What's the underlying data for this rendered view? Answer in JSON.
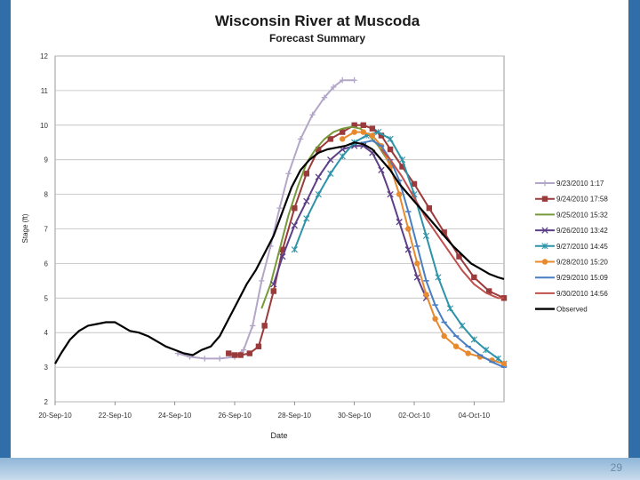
{
  "slide": {
    "page_number": "29"
  },
  "colors": {
    "frame": "#2f6ea8",
    "bottom_band": "#a9c6e0",
    "series": [
      "#b3a6c9",
      "#9b3a3a",
      "#77993a",
      "#5c3f86",
      "#2d93a8",
      "#e8892e",
      "#4a7ec2",
      "#c0504d",
      "#000000"
    ]
  },
  "chart_data": {
    "type": "line",
    "title": "Wisconsin River at Muscoda",
    "subtitle": "Forecast Summary",
    "xlabel": "Date",
    "ylabel": "Stage (ft)",
    "ylim": [
      2,
      12
    ],
    "yticks": [
      "2",
      "3",
      "4",
      "5",
      "6",
      "7",
      "8",
      "9",
      "10",
      "11",
      "12"
    ],
    "xlim": [
      0,
      15
    ],
    "xticks": [
      "20-Sep-10",
      "22-Sep-10",
      "24-Sep-10",
      "26-Sep-10",
      "28-Sep-10",
      "30-Sep-10",
      "02-Oct-10",
      "04-Oct-10"
    ],
    "xtick_positions": [
      0,
      2,
      4,
      6,
      8,
      10,
      12,
      14
    ],
    "legend_position": "right",
    "series": [
      {
        "name": "9/23/2010 1:17",
        "marker": "plus",
        "x": [
          4.1,
          4.5,
          5.0,
          5.5,
          6.0,
          6.3,
          6.6,
          6.9,
          7.2,
          7.5,
          7.8,
          8.2,
          8.6,
          9.0,
          9.3,
          9.6,
          10.0
        ],
        "y": [
          3.4,
          3.3,
          3.25,
          3.25,
          3.3,
          3.5,
          4.2,
          5.5,
          6.5,
          7.6,
          8.6,
          9.6,
          10.3,
          10.8,
          11.1,
          11.3,
          11.3
        ]
      },
      {
        "name": "9/24/2010 17:58",
        "marker": "square",
        "x": [
          5.8,
          6.0,
          6.2,
          6.5,
          6.8,
          7.0,
          7.3,
          7.6,
          8.0,
          8.4,
          8.8,
          9.2,
          9.6,
          10.0,
          10.3,
          10.6,
          10.9,
          11.2,
          11.6,
          12.0,
          12.5,
          13.0,
          13.5,
          14.0,
          14.5,
          15.0
        ],
        "y": [
          3.4,
          3.35,
          3.35,
          3.4,
          3.6,
          4.2,
          5.2,
          6.4,
          7.6,
          8.6,
          9.3,
          9.6,
          9.8,
          10.0,
          10.0,
          9.9,
          9.7,
          9.3,
          8.8,
          8.3,
          7.6,
          6.9,
          6.2,
          5.6,
          5.2,
          5.0
        ]
      },
      {
        "name": "9/25/2010 15:32",
        "marker": "none",
        "x": [
          6.9,
          7.2,
          7.5,
          7.8,
          8.1,
          8.4,
          8.7,
          9.0,
          9.3,
          9.6,
          9.9,
          10.2,
          10.5,
          10.8,
          11.1,
          11.3
        ],
        "y": [
          4.7,
          5.4,
          6.4,
          7.4,
          8.2,
          8.9,
          9.3,
          9.6,
          9.8,
          9.9,
          9.95,
          9.9,
          9.7,
          9.4,
          9.0,
          8.8
        ]
      },
      {
        "name": "9/26/2010 13:42",
        "marker": "x",
        "x": [
          7.3,
          7.6,
          8.0,
          8.4,
          8.8,
          9.2,
          9.6,
          10.0,
          10.3,
          10.6,
          10.9,
          11.2,
          11.5,
          11.8,
          12.1,
          12.4
        ],
        "y": [
          5.4,
          6.2,
          7.1,
          7.8,
          8.5,
          9.0,
          9.3,
          9.4,
          9.4,
          9.2,
          8.7,
          8.0,
          7.2,
          6.4,
          5.6,
          5.0
        ]
      },
      {
        "name": "9/27/2010 14:45",
        "marker": "asterisk",
        "x": [
          8.0,
          8.4,
          8.8,
          9.2,
          9.6,
          10.0,
          10.4,
          10.8,
          11.2,
          11.6,
          12.0,
          12.4,
          12.8,
          13.2,
          13.6,
          14.0,
          14.4,
          14.8,
          15.0
        ],
        "y": [
          6.4,
          7.3,
          8.0,
          8.6,
          9.1,
          9.5,
          9.7,
          9.8,
          9.6,
          9.0,
          8.0,
          6.8,
          5.6,
          4.7,
          4.2,
          3.8,
          3.5,
          3.25,
          3.1
        ]
      },
      {
        "name": "9/28/2010 15:20",
        "marker": "circle",
        "x": [
          9.6,
          10.0,
          10.3,
          10.6,
          10.9,
          11.2,
          11.5,
          11.8,
          12.1,
          12.4,
          12.7,
          13.0,
          13.4,
          13.8,
          14.2,
          14.6,
          15.0
        ],
        "y": [
          9.6,
          9.8,
          9.8,
          9.7,
          9.4,
          8.8,
          8.0,
          7.0,
          6.0,
          5.1,
          4.4,
          3.9,
          3.6,
          3.4,
          3.3,
          3.2,
          3.1
        ]
      },
      {
        "name": "9/29/2010 15:09",
        "marker": "dash",
        "x": [
          10.3,
          10.6,
          10.9,
          11.2,
          11.5,
          11.8,
          12.1,
          12.4,
          12.7,
          13.0,
          13.4,
          13.8,
          14.2,
          14.6,
          15.0
        ],
        "y": [
          9.5,
          9.55,
          9.4,
          9.0,
          8.4,
          7.5,
          6.5,
          5.5,
          4.8,
          4.3,
          3.9,
          3.6,
          3.35,
          3.15,
          3.0
        ]
      },
      {
        "name": "9/30/2010 14:56",
        "marker": "none",
        "x": [
          10.9,
          11.2,
          11.6,
          12.0,
          12.4,
          12.8,
          13.2,
          13.6,
          14.0,
          14.4,
          14.8,
          15.0
        ],
        "y": [
          9.3,
          9.0,
          8.5,
          7.9,
          7.3,
          6.8,
          6.3,
          5.8,
          5.4,
          5.15,
          5.0,
          5.0
        ]
      },
      {
        "name": "Observed",
        "marker": "none",
        "x": [
          0.0,
          0.2,
          0.5,
          0.8,
          1.1,
          1.4,
          1.7,
          2.0,
          2.2,
          2.5,
          2.8,
          3.1,
          3.4,
          3.7,
          4.0,
          4.3,
          4.6,
          4.9,
          5.2,
          5.5,
          5.8,
          6.1,
          6.4,
          6.7,
          7.0,
          7.3,
          7.6,
          7.9,
          8.2,
          8.5,
          8.8,
          9.1,
          9.4,
          9.7,
          10.0,
          10.3,
          10.6,
          10.9,
          11.2,
          11.5,
          11.8,
          12.1,
          12.4,
          12.7,
          13.0,
          13.3,
          13.6,
          13.9,
          14.2,
          14.5,
          14.8,
          15.0
        ],
        "y": [
          3.1,
          3.4,
          3.8,
          4.05,
          4.2,
          4.25,
          4.3,
          4.3,
          4.2,
          4.05,
          4.0,
          3.9,
          3.75,
          3.6,
          3.5,
          3.4,
          3.35,
          3.5,
          3.6,
          3.9,
          4.4,
          4.9,
          5.4,
          5.8,
          6.3,
          6.8,
          7.5,
          8.2,
          8.7,
          9.0,
          9.2,
          9.3,
          9.35,
          9.4,
          9.5,
          9.45,
          9.3,
          9.0,
          8.7,
          8.3,
          8.0,
          7.7,
          7.4,
          7.1,
          6.8,
          6.5,
          6.25,
          6.0,
          5.85,
          5.7,
          5.6,
          5.55
        ]
      }
    ]
  }
}
